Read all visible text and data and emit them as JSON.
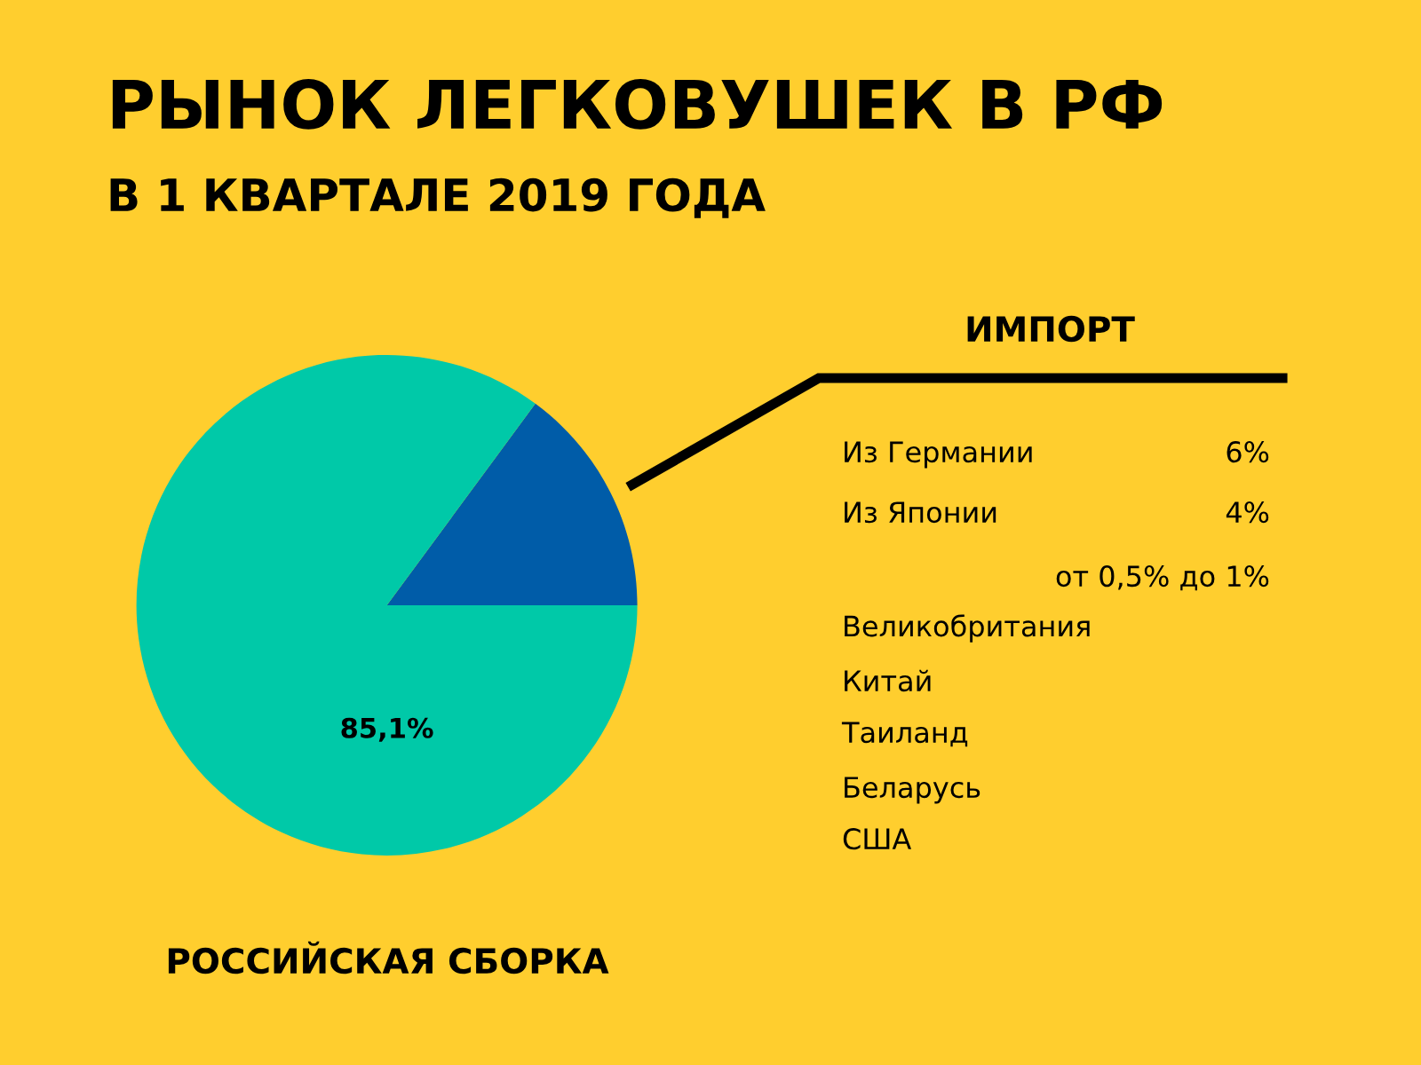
{
  "chart_data": {
    "type": "pie",
    "title": "РЫНОК ЛЕГКОВУШЕК В РФ",
    "subtitle": "В 1 КВАРТАЛЕ 2019 ГОДА",
    "categories": [
      "ИМПОРТ",
      "РОССИЙСКАЯ СБОРКА"
    ],
    "values": [
      14.9,
      85.1
    ],
    "colors": [
      "#005ca8",
      "#00c9a8"
    ],
    "value_labels": [
      null,
      "85,1%"
    ],
    "annotations": [
      "Из Германии",
      "6%",
      "Из Японии",
      "4%",
      "от 0,5% до 1%",
      "Великобритания",
      "Китай",
      "Таиланд",
      "Беларусь",
      "США"
    ]
  }
}
